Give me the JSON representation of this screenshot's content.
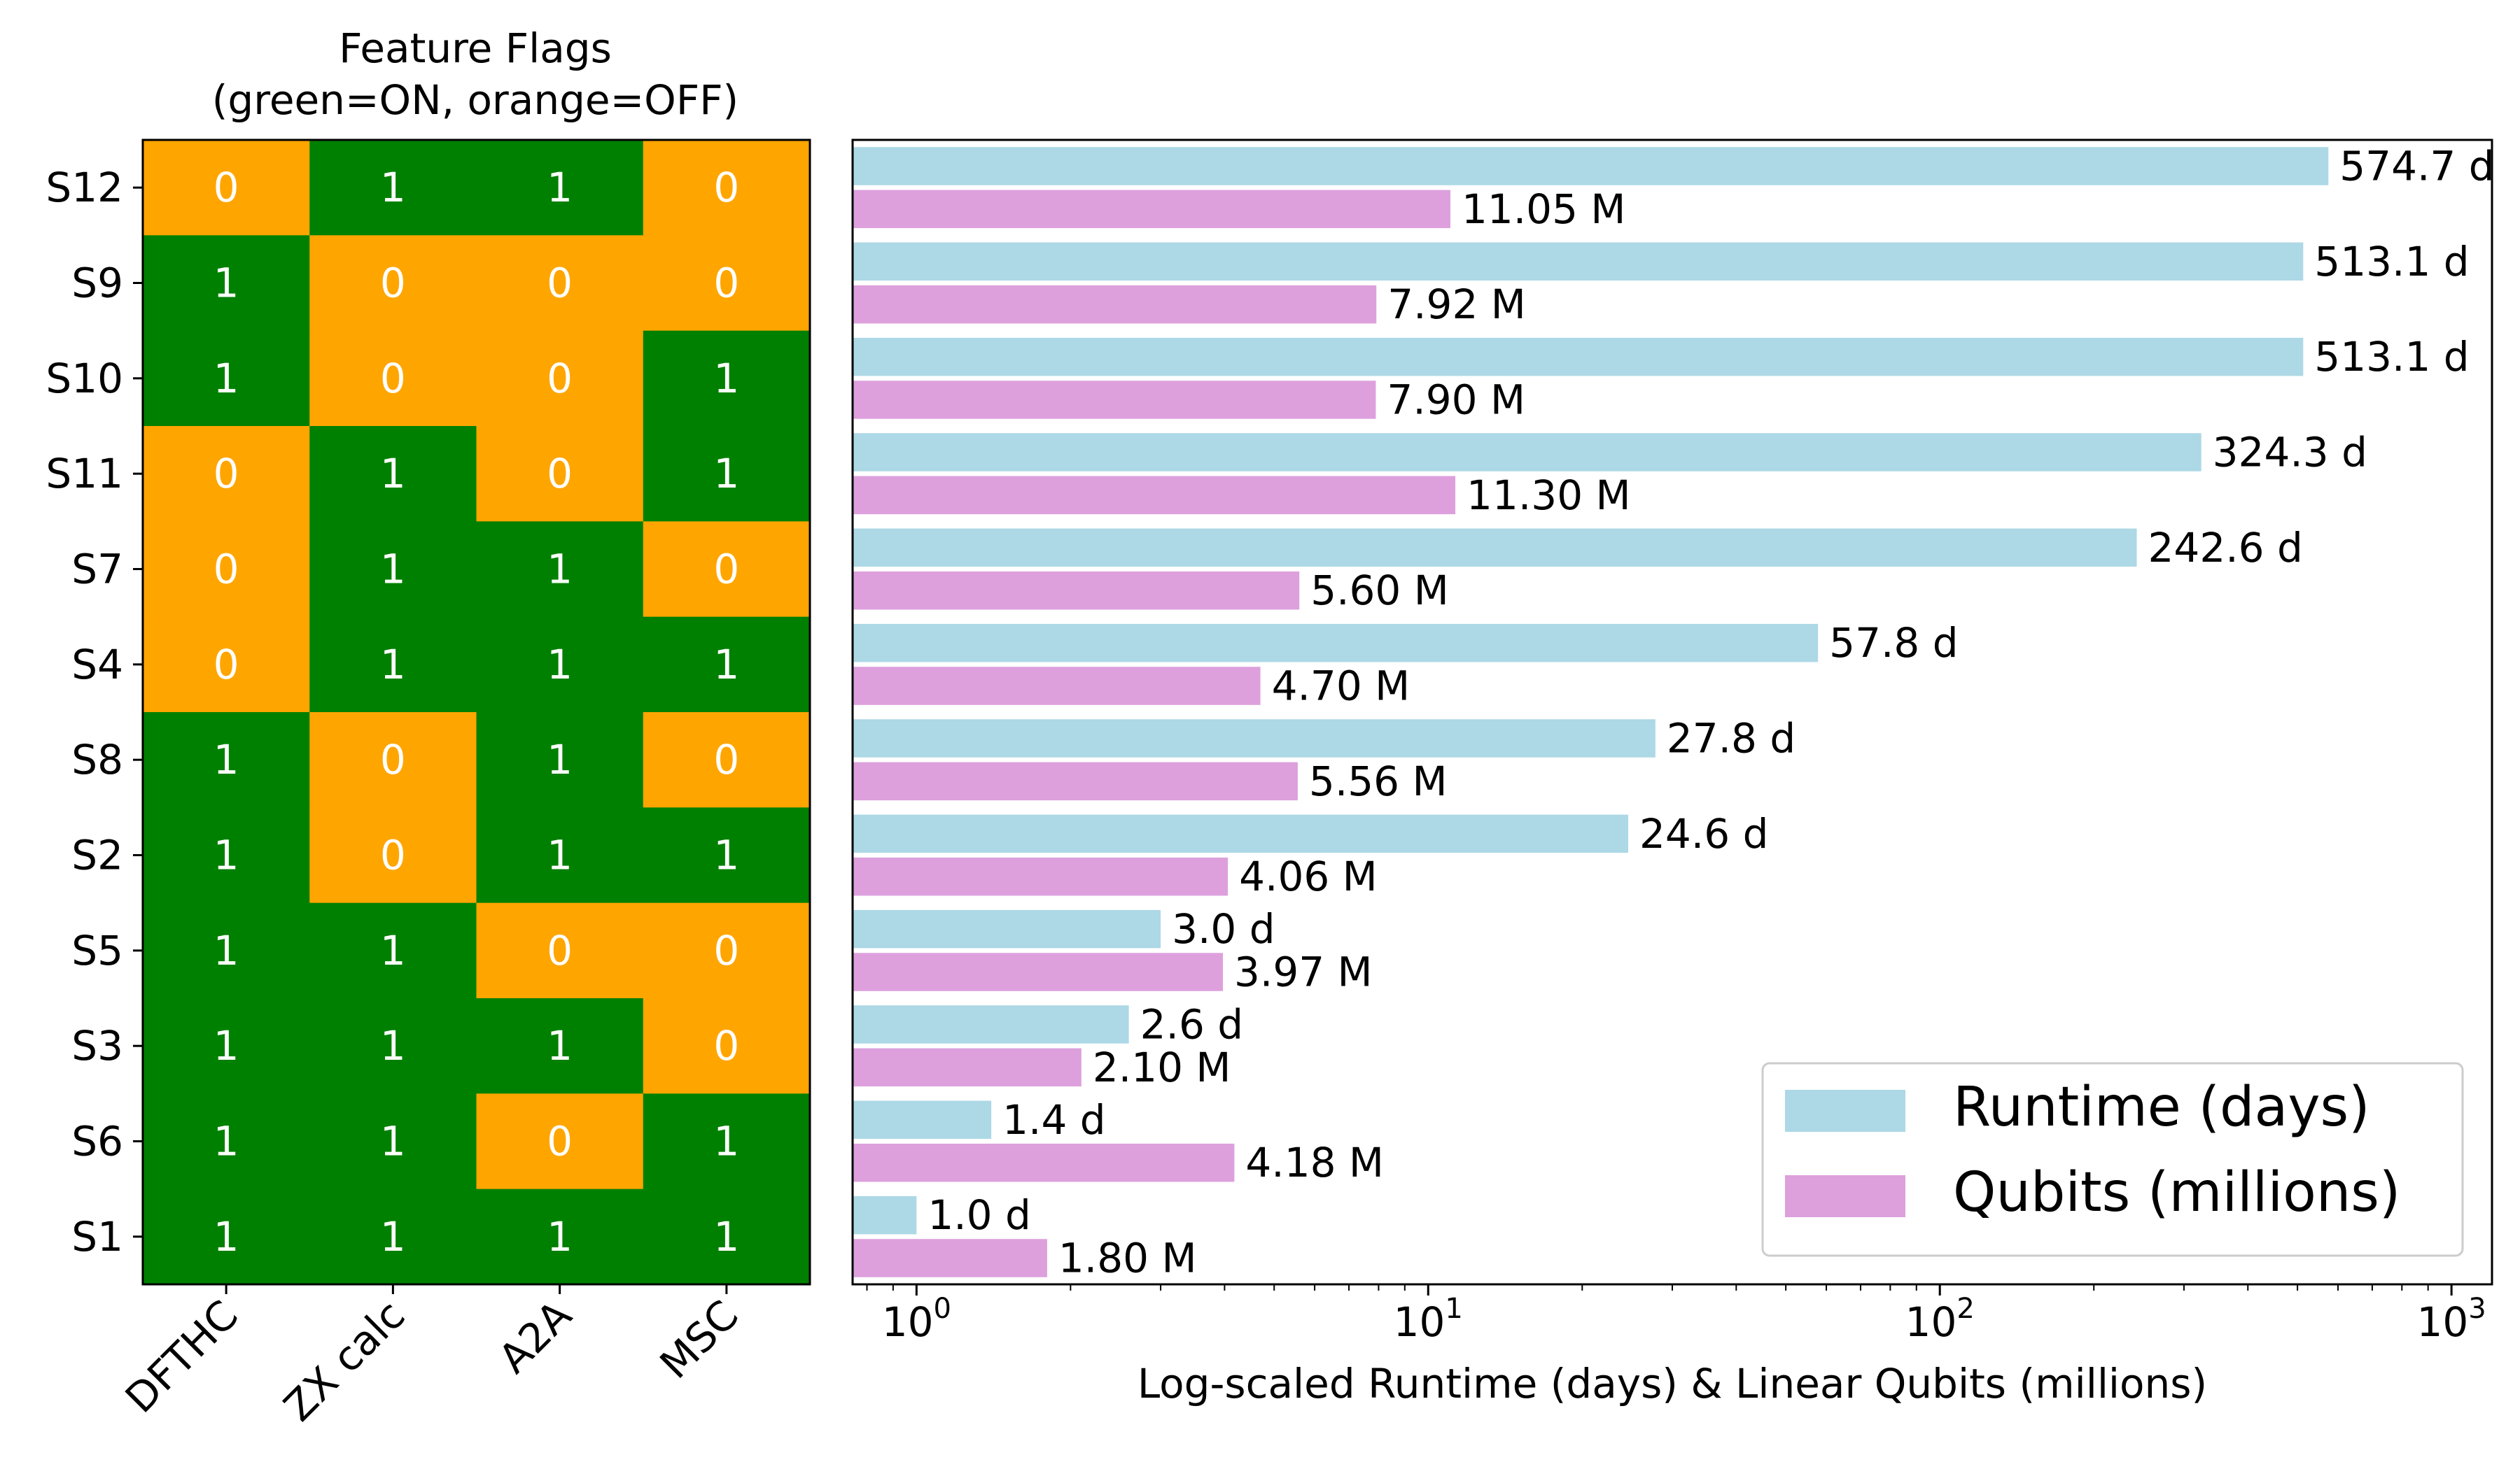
{
  "colors": {
    "on": "#008000",
    "off": "#FFA500",
    "runtime": "#ADD8E6",
    "qubits": "#DDA0DD",
    "cell_text": "#ffffff"
  },
  "chart_data": [
    {
      "type": "heatmap",
      "title": "Feature Flags\n(green=ON, orange=OFF)",
      "title_lines": [
        "Feature Flags",
        "(green=ON, orange=OFF)"
      ],
      "x_categories": [
        "DFTHC",
        "ZX calc",
        "A2A",
        "MSC"
      ],
      "y_categories": [
        "S12",
        "S9",
        "S10",
        "S11",
        "S7",
        "S4",
        "S8",
        "S2",
        "S5",
        "S3",
        "S6",
        "S1"
      ],
      "values": [
        [
          0,
          1,
          1,
          0
        ],
        [
          1,
          0,
          0,
          0
        ],
        [
          1,
          0,
          0,
          1
        ],
        [
          0,
          1,
          0,
          1
        ],
        [
          0,
          1,
          1,
          0
        ],
        [
          0,
          1,
          1,
          1
        ],
        [
          1,
          0,
          1,
          0
        ],
        [
          1,
          0,
          1,
          1
        ],
        [
          1,
          1,
          0,
          0
        ],
        [
          1,
          1,
          1,
          0
        ],
        [
          1,
          1,
          0,
          1
        ],
        [
          1,
          1,
          1,
          1
        ]
      ],
      "cell_labels": [
        [
          "0",
          "1",
          "1",
          "0"
        ],
        [
          "1",
          "0",
          "0",
          "0"
        ],
        [
          "1",
          "0",
          "0",
          "1"
        ],
        [
          "0",
          "1",
          "0",
          "1"
        ],
        [
          "0",
          "1",
          "1",
          "0"
        ],
        [
          "0",
          "1",
          "1",
          "1"
        ],
        [
          "1",
          "0",
          "1",
          "0"
        ],
        [
          "1",
          "0",
          "1",
          "1"
        ],
        [
          "1",
          "1",
          "0",
          "0"
        ],
        [
          "1",
          "1",
          "1",
          "0"
        ],
        [
          "1",
          "1",
          "0",
          "1"
        ],
        [
          "1",
          "1",
          "1",
          "1"
        ]
      ]
    },
    {
      "type": "bar",
      "orientation": "horizontal",
      "xlabel": "Log-scaled Runtime (days) & Linear Qubits (millions)",
      "xscale": "log",
      "xlim": [
        0.75,
        1200
      ],
      "xticks": [
        1,
        10,
        100,
        1000
      ],
      "xtick_labels": [
        {
          "base": "10",
          "exp": "0"
        },
        {
          "base": "10",
          "exp": "1"
        },
        {
          "base": "10",
          "exp": "2"
        },
        {
          "base": "10",
          "exp": "3"
        }
      ],
      "categories": [
        "S12",
        "S9",
        "S10",
        "S11",
        "S7",
        "S4",
        "S8",
        "S2",
        "S5",
        "S3",
        "S6",
        "S1"
      ],
      "series": [
        {
          "name": "Runtime (days)",
          "values": [
            574.7,
            513.1,
            513.1,
            324.3,
            242.6,
            57.8,
            27.8,
            24.6,
            3.0,
            2.6,
            1.4,
            1.0
          ],
          "labels": [
            "574.7 d",
            "513.1 d",
            "513.1 d",
            "324.3 d",
            "242.6 d",
            "57.8 d",
            "27.8 d",
            "24.6 d",
            "3.0 d",
            "2.6 d",
            "1.4 d",
            "1.0 d"
          ]
        },
        {
          "name": "Qubits (millions)",
          "values": [
            11.05,
            7.92,
            7.9,
            11.3,
            5.6,
            4.7,
            5.56,
            4.06,
            3.97,
            2.1,
            4.18,
            1.8
          ],
          "labels": [
            "11.05 M",
            "7.92 M",
            "7.90 M",
            "11.30 M",
            "5.60 M",
            "4.70 M",
            "5.56 M",
            "4.06 M",
            "3.97 M",
            "2.10 M",
            "4.18 M",
            "1.80 M"
          ]
        }
      ],
      "legend": {
        "position": "lower-right"
      }
    }
  ]
}
